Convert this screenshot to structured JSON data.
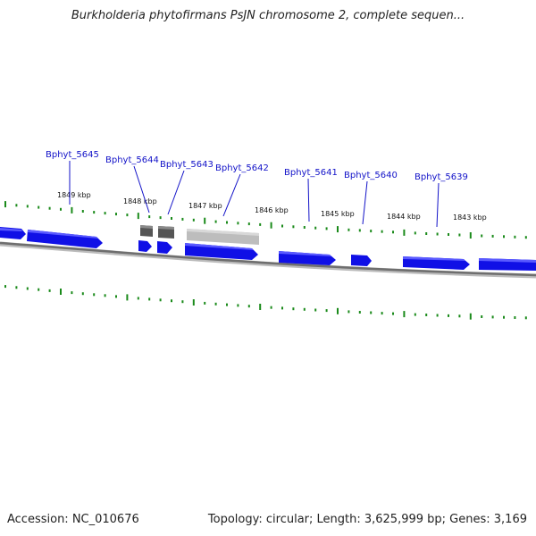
{
  "title": "Burkholderia phytofirmans PsJN chromosome 2, complete sequen...",
  "footer": {
    "accession": "Accession: NC_010676",
    "summary": "Topology: circular; Length: 3,625,999 bp; Genes: 3,169"
  },
  "colors": {
    "gene_forward": "#1010e6",
    "gene_highlight": "#4a4aff",
    "gene_dark": "#555555",
    "gene_light": "#bdbdbd",
    "backbone": "#7a7a7a",
    "tick": "#1a8a1a",
    "label": "#1212c8"
  },
  "tick_labels": [
    "1849 kbp",
    "1848 kbp",
    "1847 kbp",
    "1846 kbp",
    "1845 kbp",
    "1844 kbp",
    "1843 kbp"
  ],
  "gene_labels": [
    "Bphyt_5645",
    "Bphyt_5644",
    "Bphyt_5643",
    "Bphyt_5642",
    "Bphyt_5641",
    "Bphyt_5640",
    "Bphyt_5639"
  ]
}
